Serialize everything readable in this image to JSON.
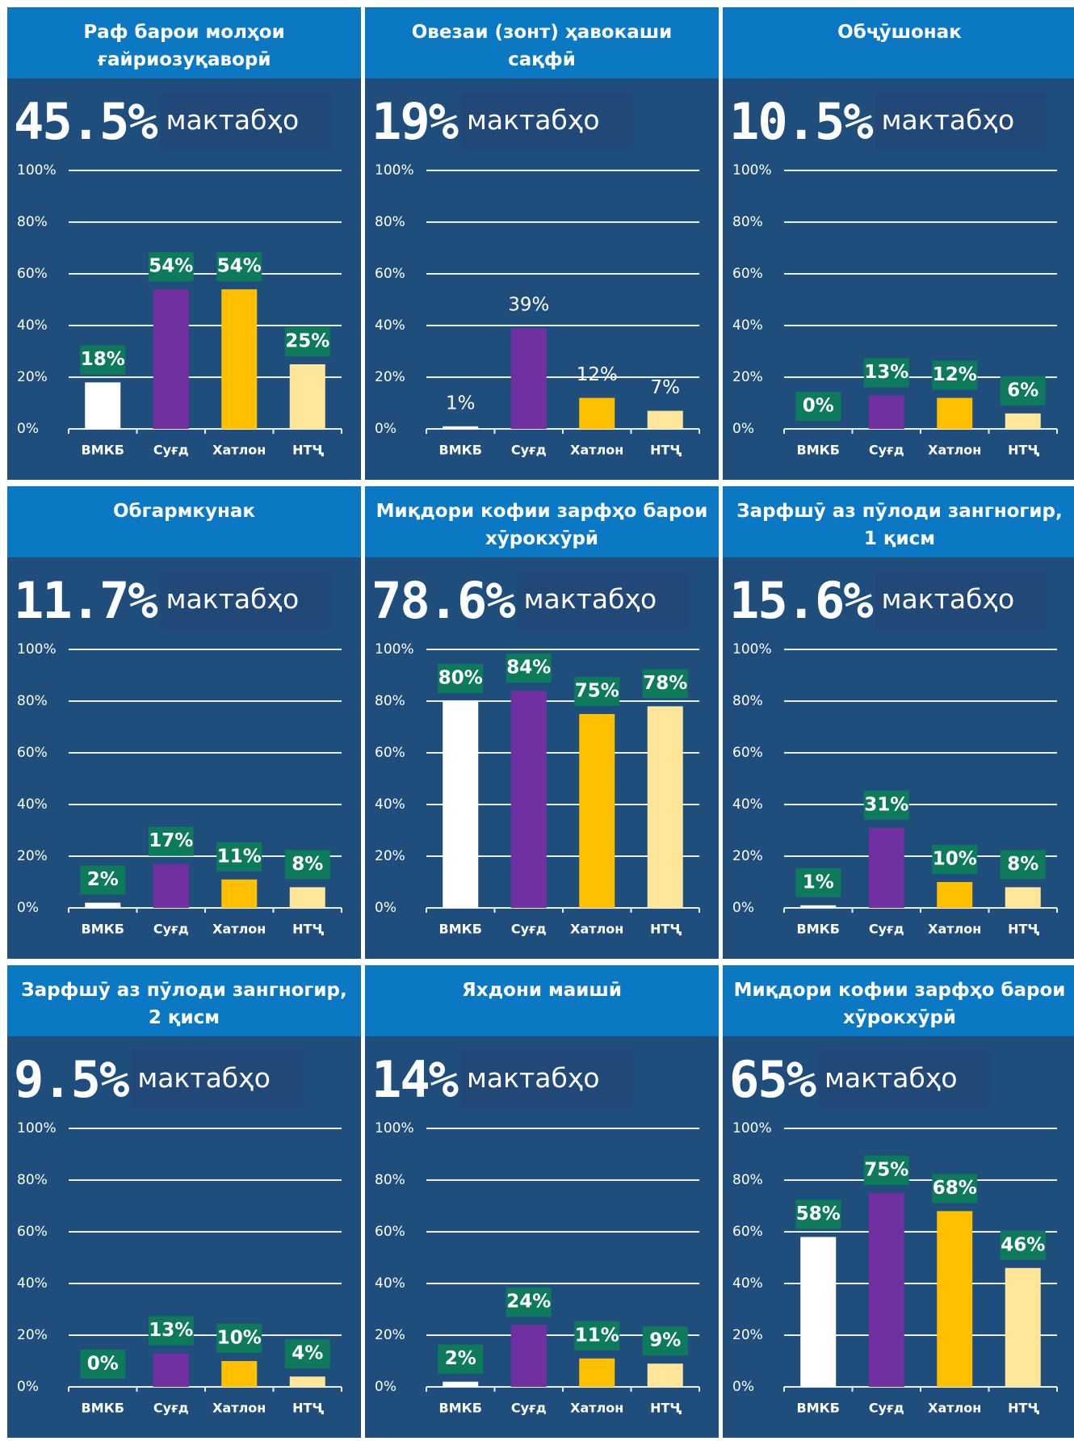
{
  "chart_data": [
    {
      "type": "bar",
      "title": "Раф барои молҳои ғайриозуқаворӣ",
      "headline": "45.5%",
      "headline_unit": "мактабҳо",
      "categories": [
        "ВМКБ",
        "Суғд",
        "Хатлон",
        "НТҶ"
      ],
      "values": [
        18,
        54,
        54,
        25
      ],
      "value_labels": [
        "18%",
        "54%",
        "54%",
        "25%"
      ],
      "value_label_style": "boxed",
      "colors": [
        "#ffffff",
        "#7030a0",
        "#ffc000",
        "#ffe699"
      ],
      "ylim": [
        0,
        100
      ],
      "yticks": [
        {
          "value": 0,
          "label": "0%"
        },
        {
          "value": 20,
          "label": "20%"
        },
        {
          "value": 40,
          "label": "40%"
        },
        {
          "value": 60,
          "label": "60%"
        },
        {
          "value": 80,
          "label": "80%"
        },
        {
          "value": 100,
          "label": "100%"
        }
      ],
      "grid": true
    },
    {
      "type": "bar",
      "title": "Овезаи (зонт) ҳавокаши сақфӣ",
      "headline": "19%",
      "headline_unit": "мактабҳо",
      "categories": [
        "ВМКБ",
        "Суғд",
        "Хатлон",
        "НТҶ"
      ],
      "values": [
        1,
        39,
        12,
        7
      ],
      "value_labels": [
        "1%",
        "39%",
        "12%",
        "7%"
      ],
      "value_label_style": "plain",
      "colors": [
        "#ffffff",
        "#7030a0",
        "#ffc000",
        "#ffe699"
      ],
      "ylim": [
        0,
        100
      ],
      "yticks": [
        {
          "value": 0,
          "label": "0%"
        },
        {
          "value": 20,
          "label": "20%"
        },
        {
          "value": 40,
          "label": "40%"
        },
        {
          "value": 60,
          "label": "60%"
        },
        {
          "value": 80,
          "label": "80%"
        },
        {
          "value": 100,
          "label": "100%"
        }
      ],
      "grid": true
    },
    {
      "type": "bar",
      "title": "Обҷӯшонак",
      "headline": "10.5%",
      "headline_unit": "мактабҳо",
      "categories": [
        "ВМКБ",
        "Суғд",
        "Хатлон",
        "НТҶ"
      ],
      "values": [
        0,
        13,
        12,
        6
      ],
      "value_labels": [
        "0%",
        "13%",
        "12%",
        "6%"
      ],
      "value_label_style": "boxed",
      "colors": [
        "#ffffff",
        "#7030a0",
        "#ffc000",
        "#ffe699"
      ],
      "ylim": [
        0,
        100
      ],
      "yticks": [
        {
          "value": 0,
          "label": "0%"
        },
        {
          "value": 20,
          "label": "20%"
        },
        {
          "value": 40,
          "label": "40%"
        },
        {
          "value": 60,
          "label": "60%"
        },
        {
          "value": 80,
          "label": "80%"
        },
        {
          "value": 100,
          "label": "100%"
        }
      ],
      "grid": true
    },
    {
      "type": "bar",
      "title": "Обгармкунак",
      "headline": "11.7%",
      "headline_unit": "мактабҳо",
      "categories": [
        "ВМКБ",
        "Суғд",
        "Хатлон",
        "НТҶ"
      ],
      "values": [
        2,
        17,
        11,
        8
      ],
      "value_labels": [
        "2%",
        "17%",
        "11%",
        "8%"
      ],
      "value_label_style": "boxed",
      "colors": [
        "#ffffff",
        "#7030a0",
        "#ffc000",
        "#ffe699"
      ],
      "ylim": [
        0,
        100
      ],
      "yticks": [
        {
          "value": 0,
          "label": "0%"
        },
        {
          "value": 20,
          "label": "20%"
        },
        {
          "value": 40,
          "label": "40%"
        },
        {
          "value": 60,
          "label": "60%"
        },
        {
          "value": 80,
          "label": "80%"
        },
        {
          "value": 100,
          "label": "100%"
        }
      ],
      "grid": true
    },
    {
      "type": "bar",
      "title": "Миқдори кофии зарфҳо барои хӯрокхӯрӣ",
      "headline": "78.6%",
      "headline_unit": "мактабҳо",
      "categories": [
        "ВМКБ",
        "Суғд",
        "Хатлон",
        "НТҶ"
      ],
      "values": [
        80,
        84,
        75,
        78
      ],
      "value_labels": [
        "80%",
        "84%",
        "75%",
        "78%"
      ],
      "value_label_style": "boxed",
      "colors": [
        "#ffffff",
        "#7030a0",
        "#ffc000",
        "#ffe699"
      ],
      "ylim": [
        0,
        100
      ],
      "yticks": [
        {
          "value": 0,
          "label": "0%"
        },
        {
          "value": 20,
          "label": "20%"
        },
        {
          "value": 40,
          "label": "40%"
        },
        {
          "value": 60,
          "label": "60%"
        },
        {
          "value": 80,
          "label": "80%"
        },
        {
          "value": 100,
          "label": "100%"
        }
      ],
      "grid": true
    },
    {
      "type": "bar",
      "title": "Зарфшӯ аз пӯлоди зангногир, 1 қисм",
      "headline": "15.6%",
      "headline_unit": "мактабҳо",
      "categories": [
        "ВМКБ",
        "Суғд",
        "Хатлон",
        "НТҶ"
      ],
      "values": [
        1,
        31,
        10,
        8
      ],
      "value_labels": [
        "1%",
        "31%",
        "10%",
        "8%"
      ],
      "value_label_style": "boxed",
      "colors": [
        "#ffffff",
        "#7030a0",
        "#ffc000",
        "#ffe699"
      ],
      "ylim": [
        0,
        100
      ],
      "yticks": [
        {
          "value": 0,
          "label": "0%"
        },
        {
          "value": 20,
          "label": "20%"
        },
        {
          "value": 40,
          "label": "40%"
        },
        {
          "value": 60,
          "label": "60%"
        },
        {
          "value": 80,
          "label": "80%"
        },
        {
          "value": 100,
          "label": "100%"
        }
      ],
      "grid": true
    },
    {
      "type": "bar",
      "title": "Зарфшӯ аз пӯлоди зангногир, 2 қисм",
      "headline": "9.5%",
      "headline_unit": "мактабҳо",
      "categories": [
        "ВМКБ",
        "Суғд",
        "Хатлон",
        "НТҶ"
      ],
      "values": [
        0,
        13,
        10,
        4
      ],
      "value_labels": [
        "0%",
        "13%",
        "10%",
        "4%"
      ],
      "value_label_style": "boxed",
      "colors": [
        "#ffffff",
        "#7030a0",
        "#ffc000",
        "#ffe699"
      ],
      "ylim": [
        0,
        100
      ],
      "yticks": [
        {
          "value": 0,
          "label": "0%"
        },
        {
          "value": 20,
          "label": "20%"
        },
        {
          "value": 40,
          "label": "40%"
        },
        {
          "value": 60,
          "label": "60%"
        },
        {
          "value": 80,
          "label": "80%"
        },
        {
          "value": 100,
          "label": "100%"
        }
      ],
      "grid": true
    },
    {
      "type": "bar",
      "title": "Яхдони маишӣ",
      "headline": "14%",
      "headline_unit": "мактабҳо",
      "categories": [
        "ВМКБ",
        "Суғд",
        "Хатлон",
        "НТҶ"
      ],
      "values": [
        2,
        24,
        11,
        9
      ],
      "value_labels": [
        "2%",
        "24%",
        "11%",
        "9%"
      ],
      "value_label_style": "boxed",
      "colors": [
        "#ffffff",
        "#7030a0",
        "#ffc000",
        "#ffe699"
      ],
      "ylim": [
        0,
        100
      ],
      "yticks": [
        {
          "value": 0,
          "label": "0%"
        },
        {
          "value": 20,
          "label": "20%"
        },
        {
          "value": 40,
          "label": "40%"
        },
        {
          "value": 60,
          "label": "60%"
        },
        {
          "value": 80,
          "label": "80%"
        },
        {
          "value": 100,
          "label": "100%"
        }
      ],
      "grid": true
    },
    {
      "type": "bar",
      "title": "Миқдори кофии зарфҳо барои хӯрокхӯрӣ",
      "headline": "65%",
      "headline_unit": "мактабҳо",
      "categories": [
        "ВМКБ",
        "Суғд",
        "Хатлон",
        "НТҶ"
      ],
      "values": [
        58,
        75,
        68,
        46
      ],
      "value_labels": [
        "58%",
        "75%",
        "68%",
        "46%"
      ],
      "value_label_style": "boxed",
      "colors": [
        "#ffffff",
        "#7030a0",
        "#ffc000",
        "#ffe699"
      ],
      "ylim": [
        0,
        100
      ],
      "yticks": [
        {
          "value": 0,
          "label": "0%"
        },
        {
          "value": 20,
          "label": "20%"
        },
        {
          "value": 40,
          "label": "40%"
        },
        {
          "value": 60,
          "label": "60%"
        },
        {
          "value": 80,
          "label": "80%"
        },
        {
          "value": 100,
          "label": "100%"
        }
      ],
      "grid": true
    }
  ]
}
